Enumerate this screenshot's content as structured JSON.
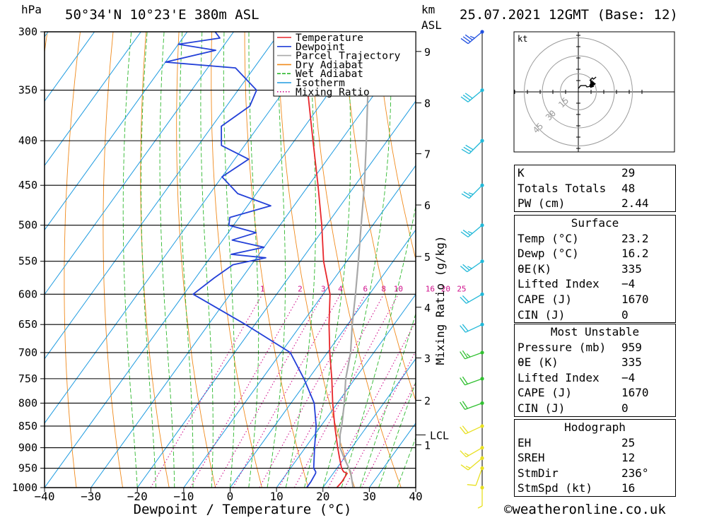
{
  "header": {
    "hpa_label": "hPa",
    "location": "50°34'N 10°23'E 380m ASL",
    "km_label": "km",
    "asl_label": "ASL",
    "datetime": "25.07.2021 12GMT (Base: 12)"
  },
  "legend": {
    "items": [
      {
        "label": "Temperature",
        "color": "#e8262b",
        "style": "solid"
      },
      {
        "label": "Dewpoint",
        "color": "#2340d8",
        "style": "solid"
      },
      {
        "label": "Parcel Trajectory",
        "color": "#a8a8a8",
        "style": "solid"
      },
      {
        "label": "Dry Adiabat",
        "color": "#f08a1c",
        "style": "solid"
      },
      {
        "label": "Wet Adiabat",
        "color": "#2eb82e",
        "style": "dashed"
      },
      {
        "label": "Isotherm",
        "color": "#1e9be0",
        "style": "solid"
      },
      {
        "label": "Mixing Ratio",
        "color": "#d0108c",
        "style": "dotted"
      }
    ]
  },
  "chart_data": {
    "type": "line",
    "chart_kind": "skew-T log-P sounding",
    "xlabel": "Dewpoint / Temperature (°C)",
    "ylabel": "hPa",
    "right_axis_label": "Mixing Ratio (g/kg)",
    "xlim": [
      -40,
      40
    ],
    "ylim": [
      1000,
      300
    ],
    "x_ticks": [
      -40,
      -30,
      -20,
      -10,
      0,
      10,
      20,
      30,
      40
    ],
    "x_tick_labels": [
      "−40",
      "−30",
      "−20",
      "−10",
      "0",
      "10",
      "20",
      "30",
      "40"
    ],
    "pressure_levels": [
      300,
      350,
      400,
      450,
      500,
      550,
      600,
      650,
      700,
      750,
      800,
      850,
      900,
      950,
      1000
    ],
    "pressure_labels": [
      "300",
      "350",
      "400",
      "450",
      "500",
      "550",
      "600",
      "650",
      "700",
      "750",
      "800",
      "850",
      "900",
      "950",
      "1000"
    ],
    "km_ticks": [
      {
        "label": "9",
        "p": 316
      },
      {
        "label": "8",
        "p": 362
      },
      {
        "label": "7",
        "p": 414
      },
      {
        "label": "6",
        "p": 474
      },
      {
        "label": "5",
        "p": 543
      },
      {
        "label": "4",
        "p": 621
      },
      {
        "label": "3",
        "p": 710
      },
      {
        "label": "2",
        "p": 794
      },
      {
        "label": "1",
        "p": 893
      }
    ],
    "lcl_label": "LCL",
    "lcl_p": 870,
    "mixing_ratio_labels": [
      "1",
      "2",
      "3",
      "4",
      "6",
      "8",
      "10",
      "16",
      "20",
      "25"
    ],
    "mixing_ratio_values": [
      1,
      2,
      3,
      4,
      6,
      8,
      10,
      16,
      20,
      25
    ],
    "series": [
      {
        "name": "Temperature",
        "points": [
          [
            1000,
            23.0
          ],
          [
            985,
            23.2
          ],
          [
            963,
            23.0
          ],
          [
            959,
            22.0
          ],
          [
            950,
            21.0
          ],
          [
            925,
            19.0
          ],
          [
            900,
            17.0
          ],
          [
            850,
            13.0
          ],
          [
            800,
            9.0
          ],
          [
            750,
            5.0
          ],
          [
            700,
            0.5
          ],
          [
            650,
            -4.0
          ],
          [
            600,
            -8.5
          ],
          [
            550,
            -15.0
          ],
          [
            500,
            -21.0
          ],
          [
            450,
            -28.0
          ],
          [
            400,
            -36.0
          ],
          [
            350,
            -45.0
          ],
          [
            300,
            -53.0
          ]
        ]
      },
      {
        "name": "Dewpoint",
        "points": [
          [
            1000,
            16.5
          ],
          [
            985,
            16.5
          ],
          [
            963,
            16.2
          ],
          [
            959,
            16.0
          ],
          [
            950,
            15.0
          ],
          [
            900,
            12.0
          ],
          [
            850,
            9.0
          ],
          [
            800,
            5.0
          ],
          [
            750,
            -1.0
          ],
          [
            700,
            -8.0
          ],
          [
            650,
            -22.0
          ],
          [
            600,
            -38.0
          ],
          [
            575,
            -36.0
          ],
          [
            555,
            -34.0
          ],
          [
            545,
            -28.0
          ],
          [
            540,
            -36.0
          ],
          [
            530,
            -30.0
          ],
          [
            520,
            -38.0
          ],
          [
            510,
            -34.0
          ],
          [
            500,
            -41.0
          ],
          [
            490,
            -42.0
          ],
          [
            475,
            -35.0
          ],
          [
            460,
            -44.0
          ],
          [
            440,
            -50.0
          ],
          [
            420,
            -47.0
          ],
          [
            405,
            -55.0
          ],
          [
            385,
            -58.0
          ],
          [
            365,
            -55.0
          ],
          [
            350,
            -56.0
          ],
          [
            330,
            -64.0
          ],
          [
            325,
            -80.0
          ],
          [
            315,
            -71.0
          ],
          [
            310,
            -80.0
          ],
          [
            305,
            -72.0
          ],
          [
            300,
            -74.0
          ]
        ]
      },
      {
        "name": "Parcel Trajectory",
        "points": [
          [
            1000,
            26.5
          ],
          [
            959,
            23.5
          ],
          [
            925,
            20.0
          ],
          [
            900,
            17.5
          ],
          [
            870,
            15.5
          ],
          [
            850,
            14.5
          ],
          [
            800,
            11.5
          ],
          [
            750,
            8.0
          ],
          [
            700,
            5.0
          ],
          [
            650,
            1.0
          ],
          [
            600,
            -3.0
          ],
          [
            550,
            -7.5
          ],
          [
            500,
            -12.5
          ],
          [
            450,
            -18.0
          ],
          [
            400,
            -24.5
          ],
          [
            350,
            -32.0
          ],
          [
            300,
            -41.0
          ]
        ]
      }
    ],
    "wind_profile": [
      {
        "p": 1000,
        "dir": 180,
        "spd": 5
      },
      {
        "p": 950,
        "dir": 200,
        "spd": 10
      },
      {
        "p": 925,
        "dir": 230,
        "spd": 15
      },
      {
        "p": 900,
        "dir": 240,
        "spd": 15
      },
      {
        "p": 850,
        "dir": 245,
        "spd": 20
      },
      {
        "p": 800,
        "dir": 250,
        "spd": 20
      },
      {
        "p": 750,
        "dir": 250,
        "spd": 20
      },
      {
        "p": 700,
        "dir": 250,
        "spd": 25
      },
      {
        "p": 650,
        "dir": 245,
        "spd": 20
      },
      {
        "p": 600,
        "dir": 240,
        "spd": 20
      },
      {
        "p": 550,
        "dir": 235,
        "spd": 25
      },
      {
        "p": 500,
        "dir": 230,
        "spd": 25
      },
      {
        "p": 450,
        "dir": 225,
        "spd": 25
      },
      {
        "p": 400,
        "dir": 225,
        "spd": 30
      },
      {
        "p": 350,
        "dir": 230,
        "spd": 30
      },
      {
        "p": 300,
        "dir": 230,
        "spd": 35
      }
    ],
    "hodograph": {
      "unit_label": "kt",
      "rings": [
        15,
        30,
        45
      ],
      "ring_labels": [
        "15",
        "30",
        "45"
      ],
      "storm_motion": {
        "dir": 236,
        "spd": 16
      }
    }
  },
  "indices": {
    "K": "29",
    "Totals Totals": "48",
    "PW (cm)": "2.44"
  },
  "surface": {
    "title": "Surface",
    "rows": [
      {
        "k": "Temp (°C)",
        "v": "23.2"
      },
      {
        "k": "Dewp (°C)",
        "v": "16.2"
      },
      {
        "k": "θE(K)",
        "v": "335"
      },
      {
        "k": "Lifted Index",
        "v": "−4"
      },
      {
        "k": "CAPE (J)",
        "v": "1670"
      },
      {
        "k": "CIN (J)",
        "v": "0"
      }
    ]
  },
  "most_unstable": {
    "title": "Most Unstable",
    "rows": [
      {
        "k": "Pressure (mb)",
        "v": "959"
      },
      {
        "k": "θE (K)",
        "v": "335"
      },
      {
        "k": "Lifted Index",
        "v": "−4"
      },
      {
        "k": "CAPE (J)",
        "v": "1670"
      },
      {
        "k": "CIN (J)",
        "v": "0"
      }
    ]
  },
  "hodograph_table": {
    "title": "Hodograph",
    "rows": [
      {
        "k": "EH",
        "v": "25"
      },
      {
        "k": "SREH",
        "v": "12"
      },
      {
        "k": "StmDir",
        "v": "236°"
      },
      {
        "k": "StmSpd (kt)",
        "v": "16"
      }
    ]
  },
  "footer": {
    "copyright": "©weatheronline.co.uk"
  },
  "colors": {
    "isotherm": "#1e9be0",
    "dry_adiabat": "#f08a1c",
    "wet_adiabat": "#2eb82e",
    "mixing_ratio": "#d0108c",
    "temperature": "#e8262b",
    "dewpoint": "#2340d8",
    "parcel": "#a8a8a8",
    "wind_low": "#e8e020",
    "wind_mid": "#30c030",
    "wind_high": "#20b8d8",
    "wind_top": "#2050e0"
  }
}
